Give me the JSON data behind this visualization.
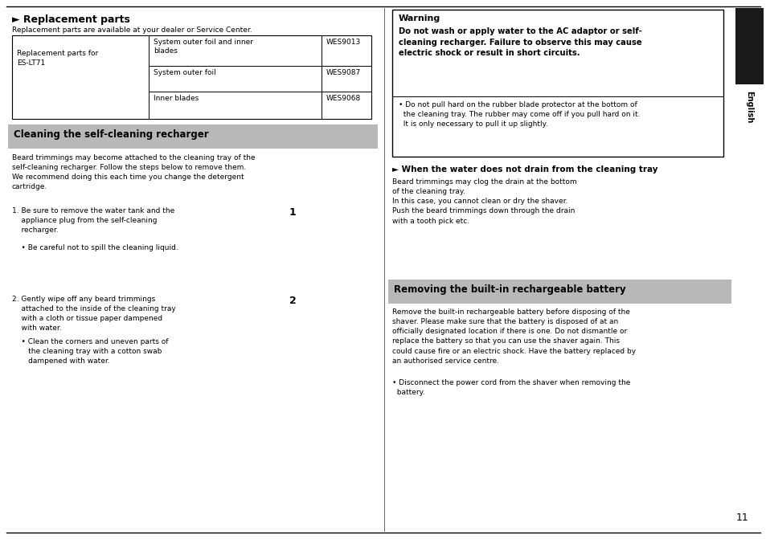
{
  "page_bg": "#ffffff",
  "page_width": 9.54,
  "page_height": 6.71,
  "dpi": 100,
  "section1_header": "► Replacement parts",
  "section1_sub": "Replacement parts are available at your dealer or Service Center.",
  "table_col1_label": "Replacement parts for\nES-LT71",
  "table_rows": [
    [
      "System outer foil and inner\nblades",
      "WES9013"
    ],
    [
      "System outer foil",
      "WES9087"
    ],
    [
      "Inner blades",
      "WES9068"
    ]
  ],
  "section2_header": "Cleaning the self-cleaning recharger",
  "section2_header_bg": "#b8b8b8",
  "section2_body": "Beard trimmings may become attached to the cleaning tray of the\nself-cleaning recharger. Follow the steps below to remove them.\nWe recommend doing this each time you change the detergent\ncartridge.",
  "step1_main": "1. Be sure to remove the water tank and the\n    appliance plug from the self-cleaning\n    recharger.",
  "step1_bullet": "    • Be careful not to spill the cleaning liquid.",
  "step2_main": "2. Gently wipe off any beard trimmings\n    attached to the inside of the cleaning tray\n    with a cloth or tissue paper dampened\n    with water.",
  "step2_bullet": "    • Clean the corners and uneven parts of\n       the cleaning tray with a cotton swab\n       dampened with water.",
  "warning_title": "Warning",
  "warning_bold": "Do not wash or apply water to the AC adaptor or self-\ncleaning recharger. Failure to observe this may cause\nelectric shock or result in short circuits.",
  "warning_bullet": "• Do not pull hard on the rubber blade protector at the bottom of\n  the cleaning tray. The rubber may come off if you pull hard on it.\n  It is only necessary to pull it up slightly.",
  "section3_header": "► When the water does not drain from the cleaning tray",
  "section3_body": "Beard trimmings may clog the drain at the bottom\nof the cleaning tray.\nIn this case, you cannot clean or dry the shaver.\nPush the beard trimmings down through the drain\nwith a tooth pick etc.",
  "section4_header": "Removing the built-in rechargeable battery",
  "section4_header_bg": "#b8b8b8",
  "section4_body": "Remove the built-in rechargeable battery before disposing of the\nshaver. Please make sure that the battery is disposed of at an\nofficially designated location if there is one. Do not dismantle or\nreplace the battery so that you can use the shaver again. This\ncould cause fire or an electric shock. Have the battery replaced by\nan authorised service centre.",
  "section4_bullet": "• Disconnect the power cord from the shaver when removing the\n  battery.",
  "page_number": "11",
  "english_label": "English",
  "sidebar_color": "#1a1a1a",
  "divider_color": "#555555",
  "border_color": "#000000"
}
